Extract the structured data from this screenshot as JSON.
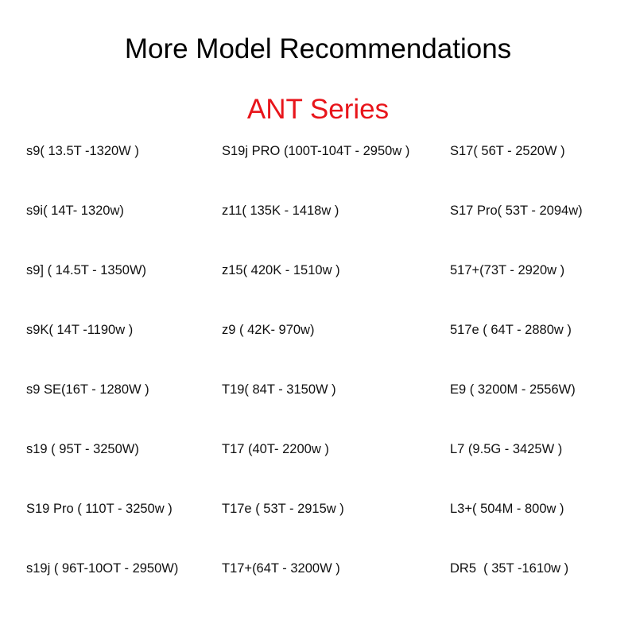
{
  "title": "More Model Recommendations",
  "subtitle": "ANT Series",
  "subtitle_color": "#e8151b",
  "columns": [
    [
      "s9( 13.5T -1320W )",
      "s9i( 14T- 1320w)",
      "s9] ( 14.5T - 1350W)",
      "s9K( 14T -1190w )",
      "s9 SE(16T - 1280W )",
      "s19 ( 95T - 3250W)",
      "S19 Pro ( 110T - 3250w )",
      "s19j ( 96T-10OT - 2950W)"
    ],
    [
      "S19j PRO (100T-104T - 2950w )",
      "z11( 135K - 1418w )",
      "z15( 420K - 1510w )",
      "z9 ( 42K- 970w)",
      "T19( 84T - 3150W )",
      "T17 (40T- 2200w )",
      "T17e ( 53T - 2915w )",
      "T17+(64T - 3200W )"
    ],
    [
      "S17( 56T - 2520W )",
      "S17 Pro( 53T - 2094w)",
      "517+(73T - 2920w )",
      "517e ( 64T - 2880w )",
      "E9 ( 3200M - 2556W)",
      "L7 (9.5G - 3425W )",
      "L3+( 504M - 800w )",
      "DR5  ( 35T -1610w )"
    ]
  ]
}
